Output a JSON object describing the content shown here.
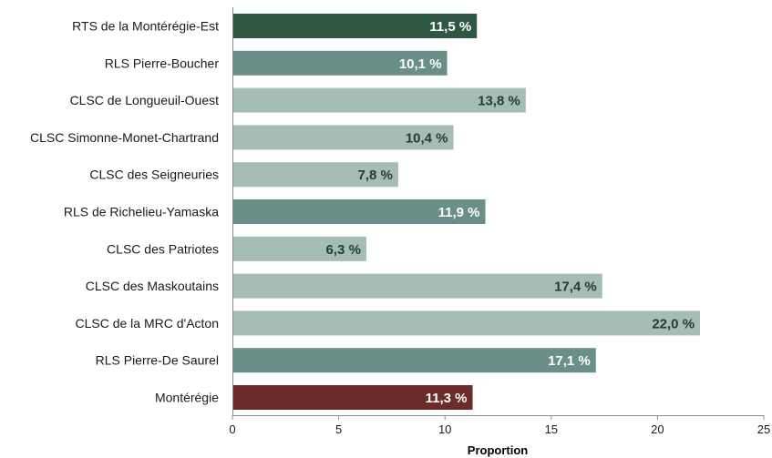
{
  "chart_data": {
    "type": "bar",
    "orientation": "horizontal",
    "categories": [
      "RTS de la Montérégie-Est",
      "RLS Pierre-Boucher",
      "CLSC de Longueuil-Ouest",
      "CLSC Simonne-Monet-Chartrand",
      "CLSC des Seigneuries",
      "RLS de Richelieu-Yamaska",
      "CLSC des Patriotes",
      "CLSC des Maskoutains",
      "CLSC de la MRC d'Acton",
      "RLS Pierre-De Saurel",
      "Montérégie"
    ],
    "values": [
      11.5,
      10.1,
      13.8,
      10.4,
      7.8,
      11.9,
      6.3,
      17.4,
      22.0,
      17.1,
      11.3
    ],
    "value_labels": [
      "11,5 %",
      "10,1 %",
      "13,8 %",
      "10,4 %",
      "7,8 %",
      "11,9 %",
      "6,3 %",
      "17,4 %",
      "22,0 %",
      "17,1 %",
      "11,3 %"
    ],
    "bar_colors": [
      "#2f5843",
      "#6a8f88",
      "#a6bcb6",
      "#a6bcb6",
      "#a6bcb6",
      "#6a8f88",
      "#a6bcb6",
      "#a6bcb6",
      "#a6bcb6",
      "#6a8f88",
      "#6b2c2a"
    ],
    "label_colors": [
      "#ffffff",
      "#ffffff",
      "#1f3d30",
      "#1f3d30",
      "#1f3d30",
      "#ffffff",
      "#1f3d30",
      "#1f3d30",
      "#1f3d30",
      "#ffffff",
      "#ffffff"
    ],
    "xlabel": "Proportion",
    "xlim": [
      0,
      25
    ],
    "xticks": [
      0,
      5,
      10,
      15,
      20,
      25
    ],
    "grid": false,
    "legend": "none"
  }
}
